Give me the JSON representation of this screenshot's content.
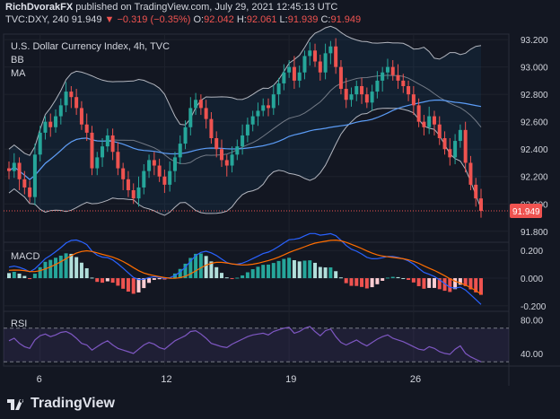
{
  "header": {
    "author": "RichDvorakFX",
    "published_text": "published on TradingView.com, July 29, 2021 12:45:13 UTC",
    "symbol": "TVC:DXY, 240",
    "last": "91.949",
    "change": "−0.319 (−0.35%)",
    "o_label": "O:",
    "o": "92.042",
    "h_label": "H:",
    "h": "92.061",
    "l_label": "L:",
    "l": "91.939",
    "c_label": "C:",
    "c": "91.949"
  },
  "main_pane": {
    "title": "U.S. Dollar Currency Index, 4h, TVC",
    "indicators": [
      "BB",
      "MA"
    ],
    "price_ticks": [
      "93.200",
      "93.000",
      "92.800",
      "92.600",
      "92.400",
      "92.200",
      "92.000",
      "91.800"
    ],
    "last_price_tag": "91.949"
  },
  "macd_pane": {
    "title": "MACD",
    "ticks": [
      "0.200",
      "0.000",
      "-0.200"
    ]
  },
  "rsi_pane": {
    "title": "RSI",
    "ticks": [
      "80.00",
      "40.00"
    ]
  },
  "x_ticks": [
    "6",
    "12",
    "19",
    "26"
  ],
  "brand": "TradingView",
  "colors": {
    "background": "#131722",
    "up": "#26a69a",
    "down": "#ef5350",
    "bollinger": "#b2b5be",
    "ma": "#5b9cf6",
    "macd_line": "#2962ff",
    "signal_line": "#ff6d00",
    "rsi": "#7e57c2"
  },
  "chart_data": [
    {
      "type": "candlestick",
      "title": "U.S. Dollar Currency Index, 4h, TVC",
      "x_ticks": [
        "6",
        "12",
        "19",
        "26"
      ],
      "ylim": [
        91.72,
        93.24
      ],
      "closes": [
        92.24,
        92.3,
        92.18,
        92.12,
        92.05,
        92.36,
        92.52,
        92.6,
        92.56,
        92.64,
        92.72,
        92.82,
        92.78,
        92.7,
        92.58,
        92.52,
        92.26,
        92.34,
        92.42,
        92.5,
        92.38,
        92.26,
        92.18,
        92.1,
        92.04,
        92.12,
        92.24,
        92.32,
        92.28,
        92.2,
        92.14,
        92.24,
        92.34,
        92.44,
        92.56,
        92.7,
        92.76,
        92.7,
        92.62,
        92.48,
        92.4,
        92.32,
        92.28,
        92.36,
        92.42,
        92.5,
        92.58,
        92.64,
        92.68,
        92.72,
        92.7,
        92.8,
        92.88,
        92.96,
        93.0,
        92.9,
        92.96,
        93.08,
        93.12,
        93.04,
        92.96,
        93.1,
        93.15,
        93.0,
        92.84,
        92.76,
        92.8,
        92.86,
        92.8,
        92.74,
        92.82,
        92.9,
        92.96,
        93.0,
        92.94,
        92.9,
        92.86,
        92.8,
        92.72,
        92.6,
        92.56,
        92.64,
        92.58,
        92.48,
        92.4,
        92.34,
        92.46,
        92.54,
        92.3,
        92.14,
        92.04,
        91.949
      ],
      "series": [
        {
          "name": "BB",
          "role": "bollinger bands"
        },
        {
          "name": "MA",
          "role": "moving average"
        }
      ]
    },
    {
      "type": "histogram",
      "title": "MACD",
      "ylim": [
        -0.24,
        0.26
      ],
      "ticks": [
        0.2,
        0.0,
        -0.2
      ],
      "macd_line_start": 0.08,
      "macd_line_end": -0.19,
      "signal_line_end": -0.13
    },
    {
      "type": "line",
      "title": "RSI",
      "ylim": [
        25,
        90
      ],
      "band": [
        70,
        30
      ],
      "ticks": [
        80,
        40
      ],
      "values": [
        55,
        58,
        52,
        48,
        46,
        56,
        61,
        63,
        60,
        62,
        65,
        66,
        63,
        58,
        52,
        50,
        44,
        48,
        52,
        55,
        50,
        46,
        44,
        42,
        40,
        45,
        50,
        53,
        51,
        47,
        45,
        50,
        55,
        58,
        61,
        66,
        67,
        63,
        58,
        52,
        50,
        48,
        47,
        51,
        54,
        57,
        60,
        62,
        63,
        64,
        62,
        66,
        68,
        70,
        71,
        64,
        66,
        70,
        72,
        66,
        61,
        67,
        69,
        60,
        53,
        50,
        53,
        56,
        52,
        49,
        53,
        57,
        60,
        62,
        58,
        56,
        54,
        51,
        48,
        45,
        44,
        48,
        46,
        42,
        40,
        39,
        45,
        49,
        40,
        36,
        33,
        30
      ]
    }
  ]
}
